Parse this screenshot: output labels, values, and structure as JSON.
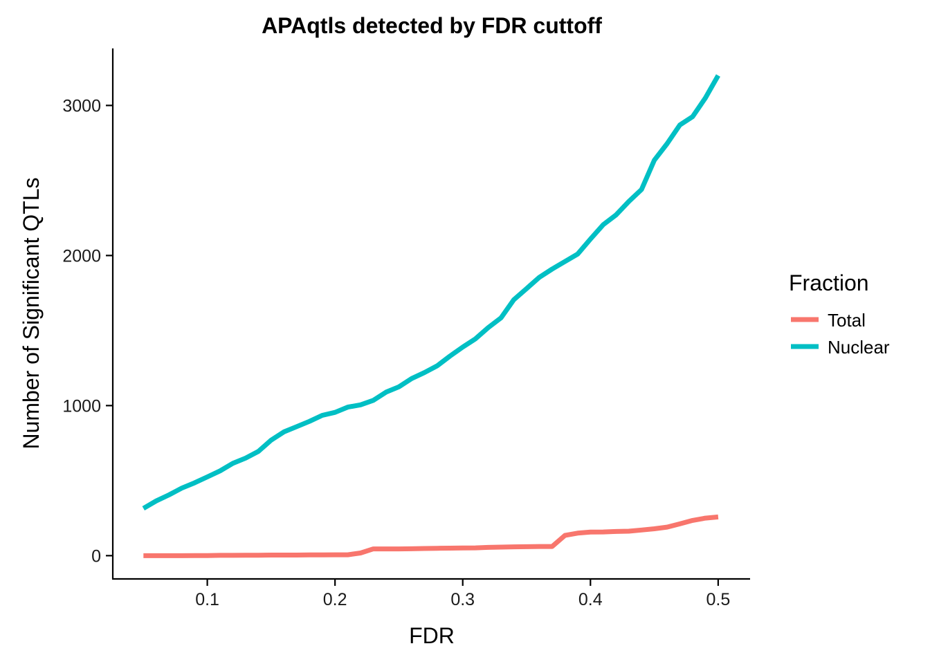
{
  "chart_data": {
    "type": "line",
    "title": "APAqtls detected by FDR cuttoff",
    "xlabel": "FDR",
    "ylabel": "Number of Significant QTLs",
    "xlim": [
      0.026,
      0.525
    ],
    "ylim": [
      -155,
      3380
    ],
    "xticks": [
      0.1,
      0.2,
      0.3,
      0.4,
      0.5
    ],
    "xtick_labels": [
      "0.1",
      "0.2",
      "0.3",
      "0.4",
      "0.5"
    ],
    "yticks": [
      0,
      1000,
      2000,
      3000
    ],
    "ytick_labels": [
      "0",
      "1000",
      "2000",
      "3000"
    ],
    "grid": false,
    "legend": {
      "title": "Fraction",
      "position": "right"
    },
    "x": [
      0.05,
      0.06,
      0.07,
      0.08,
      0.09,
      0.1,
      0.11,
      0.12,
      0.13,
      0.14,
      0.15,
      0.16,
      0.17,
      0.18,
      0.19,
      0.2,
      0.21,
      0.22,
      0.23,
      0.24,
      0.25,
      0.26,
      0.27,
      0.28,
      0.29,
      0.3,
      0.31,
      0.32,
      0.33,
      0.34,
      0.35,
      0.36,
      0.37,
      0.38,
      0.39,
      0.4,
      0.41,
      0.42,
      0.43,
      0.44,
      0.45,
      0.46,
      0.47,
      0.48,
      0.49,
      0.5
    ],
    "series": [
      {
        "name": "Total",
        "color": "#F8766D",
        "values": [
          0,
          0,
          0,
          0,
          1,
          1,
          2,
          2,
          3,
          3,
          4,
          4,
          4,
          5,
          5,
          6,
          6,
          18,
          45,
          45,
          45,
          46,
          48,
          49,
          50,
          51,
          52,
          55,
          57,
          59,
          60,
          61,
          61,
          135,
          150,
          157,
          158,
          161,
          163,
          171,
          179,
          190,
          212,
          235,
          250,
          258
        ]
      },
      {
        "name": "Nuclear",
        "color": "#00BFC4",
        "values": [
          315,
          365,
          405,
          450,
          485,
          525,
          565,
          615,
          650,
          695,
          770,
          825,
          860,
          895,
          935,
          955,
          990,
          1005,
          1035,
          1090,
          1125,
          1180,
          1220,
          1265,
          1330,
          1390,
          1445,
          1520,
          1585,
          1705,
          1780,
          1855,
          1910,
          1960,
          2010,
          2110,
          2205,
          2270,
          2360,
          2440,
          2635,
          2745,
          2870,
          2925,
          3050,
          3200
        ]
      }
    ]
  }
}
